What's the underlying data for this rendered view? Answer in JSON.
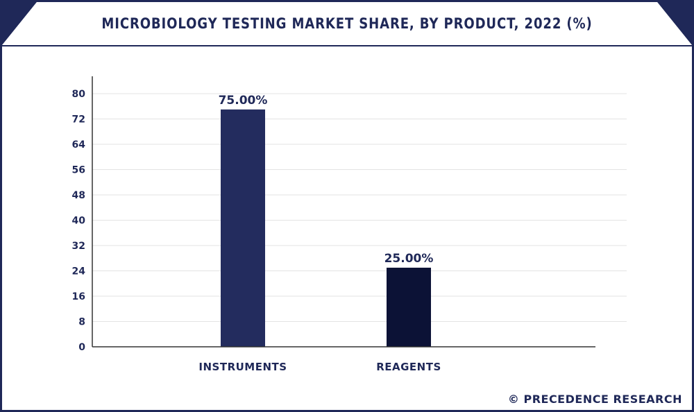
{
  "header": {
    "title": "MICROBIOLOGY TESTING MARKET SHARE, BY PRODUCT, 2022 (%)"
  },
  "credit": "© PRECEDENCE RESEARCH",
  "colors": {
    "accent": "#1f2858",
    "dark": "#0c1236",
    "grid": "#e3e3e3"
  },
  "chart_data": {
    "type": "bar",
    "categories": [
      "INSTRUMENTS",
      "REAGENTS"
    ],
    "values": [
      75,
      25
    ],
    "data_labels": [
      "75.00%",
      "25.00%"
    ],
    "bar_colors": [
      "#232c5e",
      "#0c1236"
    ],
    "yticks": [
      "0",
      "8",
      "16",
      "24",
      "32",
      "40",
      "48",
      "56",
      "64",
      "72",
      "80"
    ],
    "ylim": [
      0,
      80
    ],
    "grid": true,
    "legend": "none",
    "title": "MICROBIOLOGY TESTING MARKET SHARE, BY PRODUCT, 2022 (%)",
    "xlabel": "",
    "ylabel": ""
  }
}
